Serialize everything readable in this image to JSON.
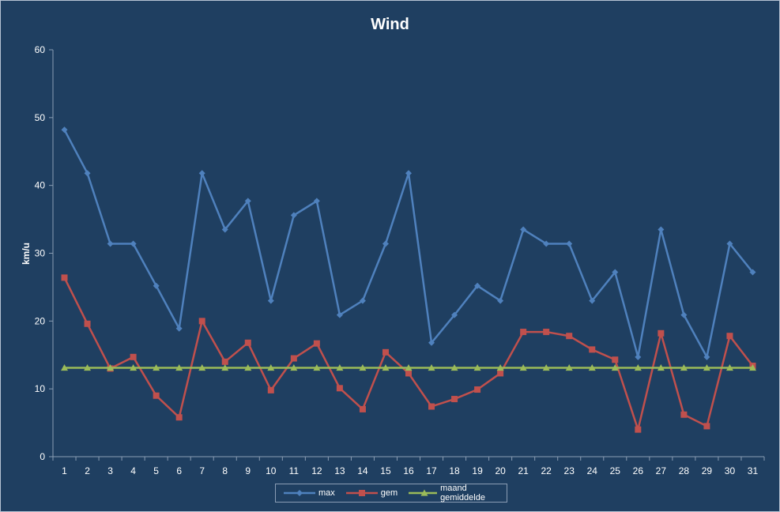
{
  "chart_data": {
    "type": "line",
    "title": "Wind",
    "ylabel": "km/u",
    "xlabel": "",
    "x": [
      "1",
      "2",
      "3",
      "4",
      "5",
      "6",
      "7",
      "8",
      "9",
      "10",
      "11",
      "12",
      "13",
      "14",
      "15",
      "16",
      "17",
      "18",
      "19",
      "20",
      "21",
      "22",
      "23",
      "24",
      "25",
      "26",
      "27",
      "28",
      "29",
      "30",
      "31"
    ],
    "ylim": [
      0,
      60
    ],
    "yticks": [
      "0",
      "10",
      "20",
      "30",
      "40",
      "50",
      "60"
    ],
    "grid": false,
    "legend_position": "bottom",
    "series": [
      {
        "name": "max",
        "color": "#4f81bd",
        "marker": "diamond",
        "values": [
          48.2,
          41.8,
          31.4,
          31.4,
          25.2,
          18.9,
          41.8,
          33.5,
          37.7,
          23.0,
          35.6,
          37.7,
          20.9,
          23.0,
          31.4,
          41.8,
          16.8,
          20.9,
          25.2,
          23.0,
          33.5,
          31.4,
          31.4,
          23.0,
          27.2,
          14.7,
          33.5,
          20.9,
          14.7,
          31.4,
          27.2
        ]
      },
      {
        "name": "gem",
        "color": "#c0504d",
        "marker": "square",
        "values": [
          26.4,
          19.6,
          13.0,
          14.7,
          9.0,
          5.8,
          20.0,
          14.0,
          16.8,
          9.8,
          14.5,
          16.7,
          10.1,
          7.0,
          15.4,
          12.3,
          7.4,
          8.5,
          9.9,
          12.3,
          18.4,
          18.4,
          17.8,
          15.8,
          14.3,
          4.0,
          18.2,
          6.2,
          4.5,
          17.8,
          13.4
        ]
      },
      {
        "name": "maand gemiddelde",
        "color": "#9bbb59",
        "marker": "triangle",
        "values": [
          13.1,
          13.1,
          13.1,
          13.1,
          13.1,
          13.1,
          13.1,
          13.1,
          13.1,
          13.1,
          13.1,
          13.1,
          13.1,
          13.1,
          13.1,
          13.1,
          13.1,
          13.1,
          13.1,
          13.1,
          13.1,
          13.1,
          13.1,
          13.1,
          13.1,
          13.1,
          13.1,
          13.1,
          13.1,
          13.1,
          13.1
        ]
      }
    ]
  },
  "colors": {
    "background": "#1f3f61",
    "axis": "#8a9db4",
    "text": "#ffffff"
  }
}
